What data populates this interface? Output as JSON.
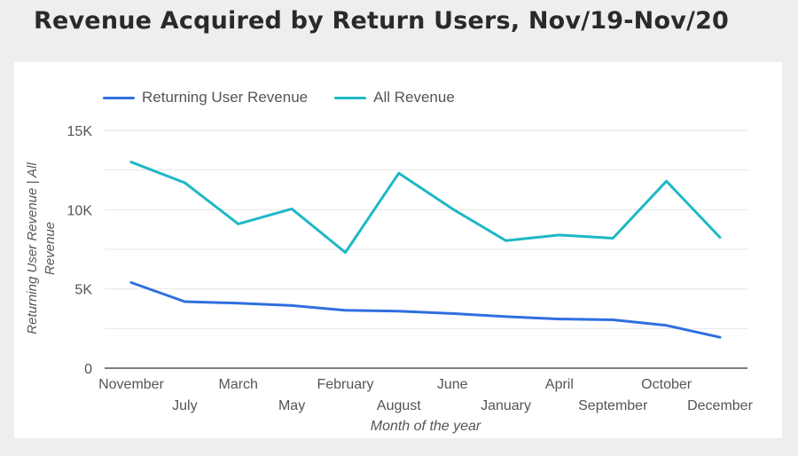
{
  "title": "Revenue Acquired by Return Users, Nov/19-Nov/20",
  "chart_data": {
    "type": "line",
    "title": "Revenue Acquired by Return Users, Nov/19-Nov/20",
    "xlabel": "Month of the year",
    "ylabel": "Returning User Revenue | All Revenue",
    "categories": [
      "November",
      "July",
      "March",
      "May",
      "February",
      "August",
      "June",
      "January",
      "April",
      "September",
      "October",
      "December"
    ],
    "series": [
      {
        "name": "Returning User Revenue",
        "color": "#2f6fe0",
        "values": [
          5400,
          4200,
          4100,
          3950,
          3650,
          3600,
          3450,
          3250,
          3100,
          3050,
          2700,
          1950
        ]
      },
      {
        "name": "All Revenue",
        "color": "#1fb8c6",
        "values": [
          13000,
          11700,
          9100,
          10050,
          7300,
          12300,
          10050,
          8050,
          8400,
          8200,
          11800,
          8250
        ]
      }
    ],
    "y_ticks": [
      "0",
      "5K",
      "10K",
      "15K"
    ],
    "y_tick_values": [
      0,
      5000,
      10000,
      15000
    ],
    "ylim": [
      0,
      15000
    ],
    "grid": true,
    "legend_position": "top-left"
  }
}
